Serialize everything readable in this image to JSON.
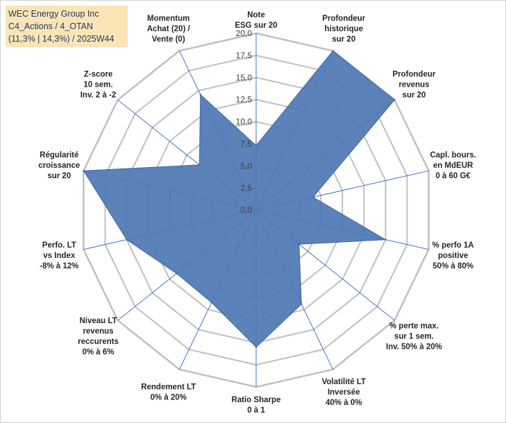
{
  "title_box": {
    "line1": "WEC Energy Group Inc",
    "line2": "C4_Actions / 4_OTAN",
    "line3": "(11,3% | 14,3%) / 2025W44"
  },
  "colors": {
    "fill": "#4e77b4",
    "stroke": "#3e66a6",
    "grid": "#bfbfbf",
    "spoke": "#4472c4",
    "title_bg": "#fbe5b6",
    "title_text": "#1f3864"
  },
  "chart_data": {
    "type": "radar",
    "range": [
      0,
      20
    ],
    "tick_step": 2.5,
    "tick_labels": [
      "0,0",
      "2,5",
      "5,0",
      "7,5",
      "10,0",
      "12,5",
      "15,0",
      "17,5",
      "20,0"
    ],
    "categories": [
      [
        "Note",
        "ESG sur 20"
      ],
      [
        "Profondeur",
        "historique",
        "sur 20"
      ],
      [
        "Profondeur",
        "revenus",
        "sur 20"
      ],
      [
        "Capl. bours.",
        "en MdEUR",
        "0 à 60 G€"
      ],
      [
        "% perfo 1A",
        "positive",
        "50% à 80%"
      ],
      [
        "% perte max.",
        "sur 1 sem.",
        "Inv. 50% à 20%"
      ],
      [
        "Volatilité LT",
        "Inversée",
        "40% à 0%"
      ],
      [
        "Ratio Sharpe",
        "0 à 1"
      ],
      [
        "Rendement LT",
        "0% à 20%"
      ],
      [
        "Niveau LT",
        "revenus",
        "reccurents",
        "0% à 6%"
      ],
      [
        "Perfo. LT",
        "vs Index",
        "-8% à 12%"
      ],
      [
        "Régularité",
        "croissance",
        "sur 20"
      ],
      [
        "Z-score",
        "10 sem.",
        "Inv. 2 à -2"
      ],
      [
        "Momentum",
        "Achat (20) /",
        "Vente (0)"
      ]
    ],
    "series": [
      {
        "name": "WEC Energy Group Inc",
        "values": [
          7.3,
          20.0,
          20.0,
          6.6,
          15.0,
          6.2,
          11.8,
          15.5,
          11.6,
          11.5,
          15.0,
          20.0,
          8.2,
          14.5
        ]
      }
    ]
  }
}
